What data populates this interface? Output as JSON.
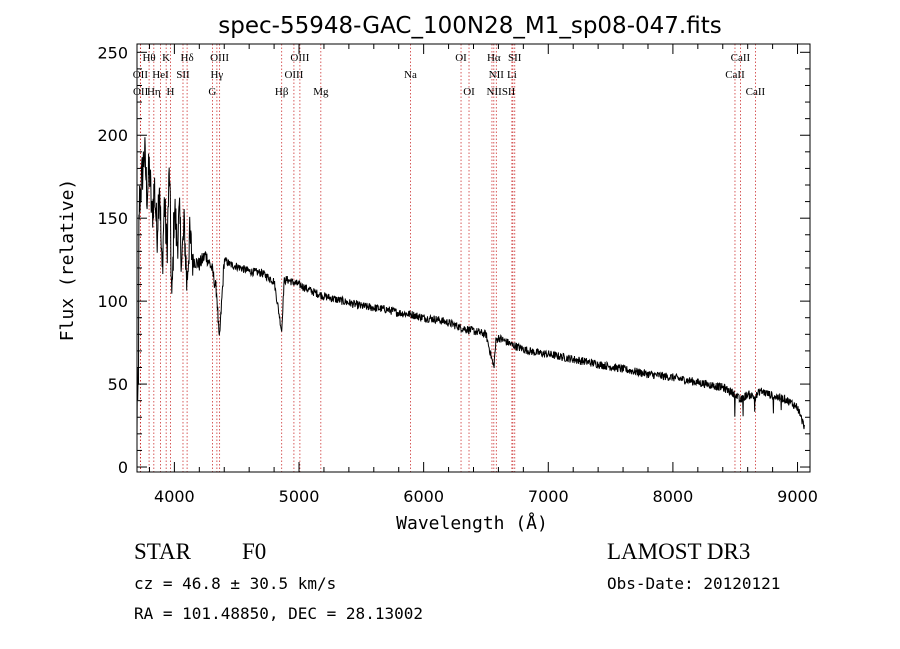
{
  "chart_data": {
    "type": "line",
    "title": "spec-55948-GAC_100N28_M1_sp08-047.fits",
    "xlabel": "Wavelength (Å)",
    "ylabel": "Flux (relative)",
    "xlim": [
      3700,
      9100
    ],
    "ylim": [
      -3,
      255
    ],
    "xticks": [
      4000,
      5000,
      6000,
      7000,
      8000,
      9000
    ],
    "yticks": [
      0,
      50,
      100,
      150,
      200,
      250
    ],
    "xtick_labels": [
      "4000",
      "5000",
      "6000",
      "7000",
      "8000",
      "9000"
    ],
    "ytick_labels": [
      "0",
      "50",
      "100",
      "150",
      "200",
      "250"
    ],
    "spectrum": {
      "name": "flux",
      "x": [
        3700,
        3710,
        3720,
        3740,
        3760,
        3780,
        3800,
        3820,
        3840,
        3860,
        3880,
        3900,
        3920,
        3940,
        3960,
        3980,
        4000,
        4020,
        4040,
        4060,
        4080,
        4100,
        4120,
        4150,
        4200,
        4250,
        4300,
        4340,
        4360,
        4400,
        4450,
        4500,
        4600,
        4700,
        4800,
        4861,
        4880,
        4900,
        5000,
        5100,
        5200,
        5300,
        5400,
        5500,
        5600,
        5700,
        5800,
        5900,
        6000,
        6100,
        6200,
        6300,
        6400,
        6500,
        6563,
        6580,
        6600,
        6700,
        6800,
        6900,
        7000,
        7200,
        7400,
        7600,
        7800,
        8000,
        8200,
        8400,
        8500,
        8540,
        8600,
        8662,
        8700,
        8800,
        8900,
        9000,
        9050
      ],
      "y": [
        70,
        130,
        160,
        175,
        190,
        165,
        180,
        150,
        170,
        140,
        175,
        115,
        160,
        130,
        180,
        95,
        160,
        135,
        150,
        125,
        145,
        110,
        138,
        125,
        122,
        128,
        120,
        105,
        75,
        125,
        122,
        121,
        118,
        117,
        112,
        82,
        112,
        113,
        110,
        106,
        103,
        101,
        99,
        97,
        96,
        95,
        93,
        92,
        90,
        89,
        87,
        84,
        82,
        80,
        60,
        76,
        78,
        74,
        71,
        69,
        68,
        65,
        62,
        59,
        56,
        54,
        51,
        48,
        44,
        40,
        44,
        42,
        46,
        43,
        41,
        36,
        25
      ]
    },
    "lines": [
      {
        "label": "Hθ",
        "x": 3797
      },
      {
        "label": "OII",
        "x": 3727
      },
      {
        "label": "OII",
        "x": 3729
      },
      {
        "label": "Hη",
        "x": 3835
      },
      {
        "label": "K",
        "x": 3934
      },
      {
        "label": "HeI",
        "x": 3889
      },
      {
        "label": "H",
        "x": 3969
      },
      {
        "label": "SII",
        "x": 4069
      },
      {
        "label": "Hδ",
        "x": 4102
      },
      {
        "label": "G",
        "x": 4305
      },
      {
        "label": "OIII",
        "x": 4363
      },
      {
        "label": "Hγ",
        "x": 4341
      },
      {
        "label": "Hβ",
        "x": 4861
      },
      {
        "label": "OIII",
        "x": 4959
      },
      {
        "label": "OIII",
        "x": 5007
      },
      {
        "label": "Mg",
        "x": 5175
      },
      {
        "label": "Na",
        "x": 5894
      },
      {
        "label": "OI",
        "x": 6300
      },
      {
        "label": "OI",
        "x": 6364
      },
      {
        "label": "NII",
        "x": 6548
      },
      {
        "label": "Hα",
        "x": 6563
      },
      {
        "label": "NII",
        "x": 6583
      },
      {
        "label": "Li",
        "x": 6708
      },
      {
        "label": "SII",
        "x": 6716
      },
      {
        "label": "SII",
        "x": 6731
      },
      {
        "label": "CaII",
        "x": 8498
      },
      {
        "label": "CaII",
        "x": 8542
      },
      {
        "label": "CaII",
        "x": 8662
      }
    ],
    "line_label_rows": [
      [
        {
          "text": "Hθ",
          "x": 3797
        },
        {
          "text": "K",
          "x": 3934
        },
        {
          "text": "Hδ",
          "x": 4102
        },
        {
          "text": "OIII",
          "x": 4363
        },
        {
          "text": "OIII",
          "x": 5007
        },
        {
          "text": "OI",
          "x": 6300
        },
        {
          "text": "Hα",
          "x": 6563
        },
        {
          "text": "SII",
          "x": 6731
        },
        {
          "text": "CaII",
          "x": 8542
        }
      ],
      [
        {
          "text": "OII",
          "x": 3727
        },
        {
          "text": "HeI",
          "x": 3889
        },
        {
          "text": "SII",
          "x": 4069
        },
        {
          "text": "Hγ",
          "x": 4341
        },
        {
          "text": "OIII",
          "x": 4959
        },
        {
          "text": "Na",
          "x": 5894
        },
        {
          "text": "NII",
          "x": 6583
        },
        {
          "text": "Li",
          "x": 6708
        },
        {
          "text": "CaII",
          "x": 8498
        }
      ],
      [
        {
          "text": "OII",
          "x": 3729
        },
        {
          "text": "Hη",
          "x": 3835
        },
        {
          "text": "H",
          "x": 3969
        },
        {
          "text": "G",
          "x": 4305
        },
        {
          "text": "Hβ",
          "x": 4861
        },
        {
          "text": "Mg",
          "x": 5175
        },
        {
          "text": "OI",
          "x": 6364
        },
        {
          "text": "NIISII",
          "x": 6620
        },
        {
          "text": "CaII",
          "x": 8662
        }
      ]
    ]
  },
  "info": {
    "class": "STAR",
    "subclass": "F0",
    "survey": "LAMOST DR3",
    "cz": "cz = 46.8 ± 30.5 km/s",
    "obs_date": "Obs-Date: 20120121",
    "coords": "RA = 101.48850, DEC =  28.13002"
  },
  "colors": {
    "spectrum": "#000000",
    "line_marker": "#cc3333",
    "axis": "#000000"
  }
}
